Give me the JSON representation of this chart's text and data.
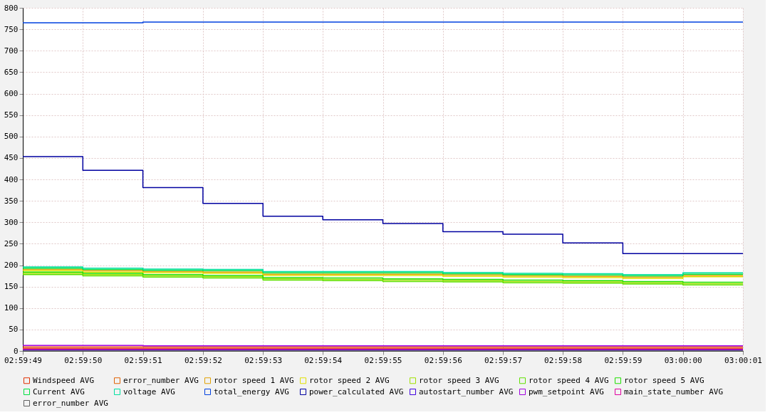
{
  "chart_data": {
    "type": "step",
    "x": [
      2.996944,
      2.997222,
      2.9975,
      2.997778,
      2.998056,
      2.998333,
      2.998611,
      2.998889,
      2.999167,
      2.999444,
      2.999722,
      3.0,
      3.000278
    ],
    "xlim": [
      2.996944,
      3.000278
    ],
    "xticks": [
      {
        "value": 2.996944,
        "label": "02:59:49"
      },
      {
        "value": 2.997222,
        "label": "02:59:50"
      },
      {
        "value": 2.9975,
        "label": "02:59:51"
      },
      {
        "value": 2.997778,
        "label": "02:59:52"
      },
      {
        "value": 2.998056,
        "label": "02:59:53"
      },
      {
        "value": 2.998333,
        "label": "02:59:54"
      },
      {
        "value": 2.998611,
        "label": "02:59:55"
      },
      {
        "value": 2.998889,
        "label": "02:59:56"
      },
      {
        "value": 2.999167,
        "label": "02:59:57"
      },
      {
        "value": 2.999444,
        "label": "02:59:58"
      },
      {
        "value": 2.999722,
        "label": "02:59:59"
      },
      {
        "value": 3.0,
        "label": "03:00:00"
      },
      {
        "value": 3.000278,
        "label": "03:00:01"
      }
    ],
    "ylim": [
      0,
      800
    ],
    "yticks": [
      0,
      50,
      100,
      150,
      200,
      250,
      300,
      350,
      400,
      450,
      500,
      550,
      600,
      650,
      700,
      750,
      800
    ],
    "grid": true,
    "legend": "bottom",
    "marker": "none",
    "line_style": "solid",
    "series": [
      {
        "name": "Windspeed AVG",
        "color": "#e03000",
        "values": [
          9,
          9,
          9,
          9,
          9,
          9,
          9,
          9,
          9,
          9,
          9,
          9,
          9
        ]
      },
      {
        "name": "error_number AVG",
        "color": "#e06000",
        "values": [
          6,
          6,
          6,
          6,
          6,
          6,
          6,
          6,
          6,
          6,
          6,
          6,
          6
        ]
      },
      {
        "name": "rotor speed 1 AVG",
        "color": "#e0a000",
        "values": [
          190,
          187,
          185,
          184,
          179,
          179,
          179,
          177,
          175,
          174,
          172,
          176,
          176
        ]
      },
      {
        "name": "rotor speed 2 AVG",
        "color": "#e0e000",
        "values": [
          187,
          184,
          182,
          181,
          176,
          176,
          176,
          174,
          172,
          171,
          169,
          173,
          173
        ]
      },
      {
        "name": "rotor speed 3 AVG",
        "color": "#a0e000",
        "values": [
          181,
          178,
          175,
          173,
          168,
          167,
          165,
          164,
          162,
          161,
          159,
          157,
          157
        ]
      },
      {
        "name": "rotor speed 4 AVG",
        "color": "#60e000",
        "values": [
          178,
          175,
          172,
          170,
          165,
          164,
          162,
          161,
          159,
          158,
          156,
          154,
          154
        ]
      },
      {
        "name": "rotor speed 5 AVG",
        "color": "#20e000",
        "values": [
          184,
          181,
          178,
          176,
          171,
          170,
          168,
          167,
          165,
          164,
          162,
          160,
          160
        ]
      },
      {
        "name": "Current AVG",
        "color": "#00e040",
        "values": [
          193,
          190,
          188,
          187,
          182,
          182,
          182,
          180,
          178,
          177,
          175,
          179,
          179
        ]
      },
      {
        "name": "voltage AVG",
        "color": "#00e0a0",
        "values": [
          196,
          193,
          191,
          190,
          185,
          185,
          185,
          183,
          181,
          180,
          178,
          182,
          182
        ]
      },
      {
        "name": "total_energy AVG",
        "color": "#0040e0",
        "values": [
          765,
          765,
          767,
          767,
          767,
          767,
          767,
          767,
          767,
          767,
          767,
          767,
          767
        ]
      },
      {
        "name": "power_calculated AVG",
        "color": "#0000a0",
        "values": [
          453,
          421,
          381,
          344,
          314,
          306,
          297,
          278,
          272,
          252,
          227,
          227,
          227
        ]
      },
      {
        "name": "autostart_number AVG",
        "color": "#4000e0",
        "values": [
          2,
          2,
          2,
          2,
          2,
          2,
          2,
          2,
          2,
          2,
          2,
          2,
          2
        ]
      },
      {
        "name": "pwm_setpoint AVG",
        "color": "#a000e0",
        "values": [
          13,
          13,
          12,
          12,
          12,
          12,
          12,
          12,
          12,
          12,
          12,
          12,
          12
        ]
      },
      {
        "name": "main_state_number AVG",
        "color": "#e000a0",
        "values": [
          4,
          4,
          4,
          4,
          4,
          4,
          4,
          4,
          4,
          4,
          4,
          4,
          4
        ]
      },
      {
        "name": "error_number AVG",
        "color": "#606060",
        "values": [
          0,
          0,
          0,
          0,
          0,
          0,
          0,
          0,
          0,
          0,
          0,
          0,
          0
        ]
      }
    ]
  }
}
